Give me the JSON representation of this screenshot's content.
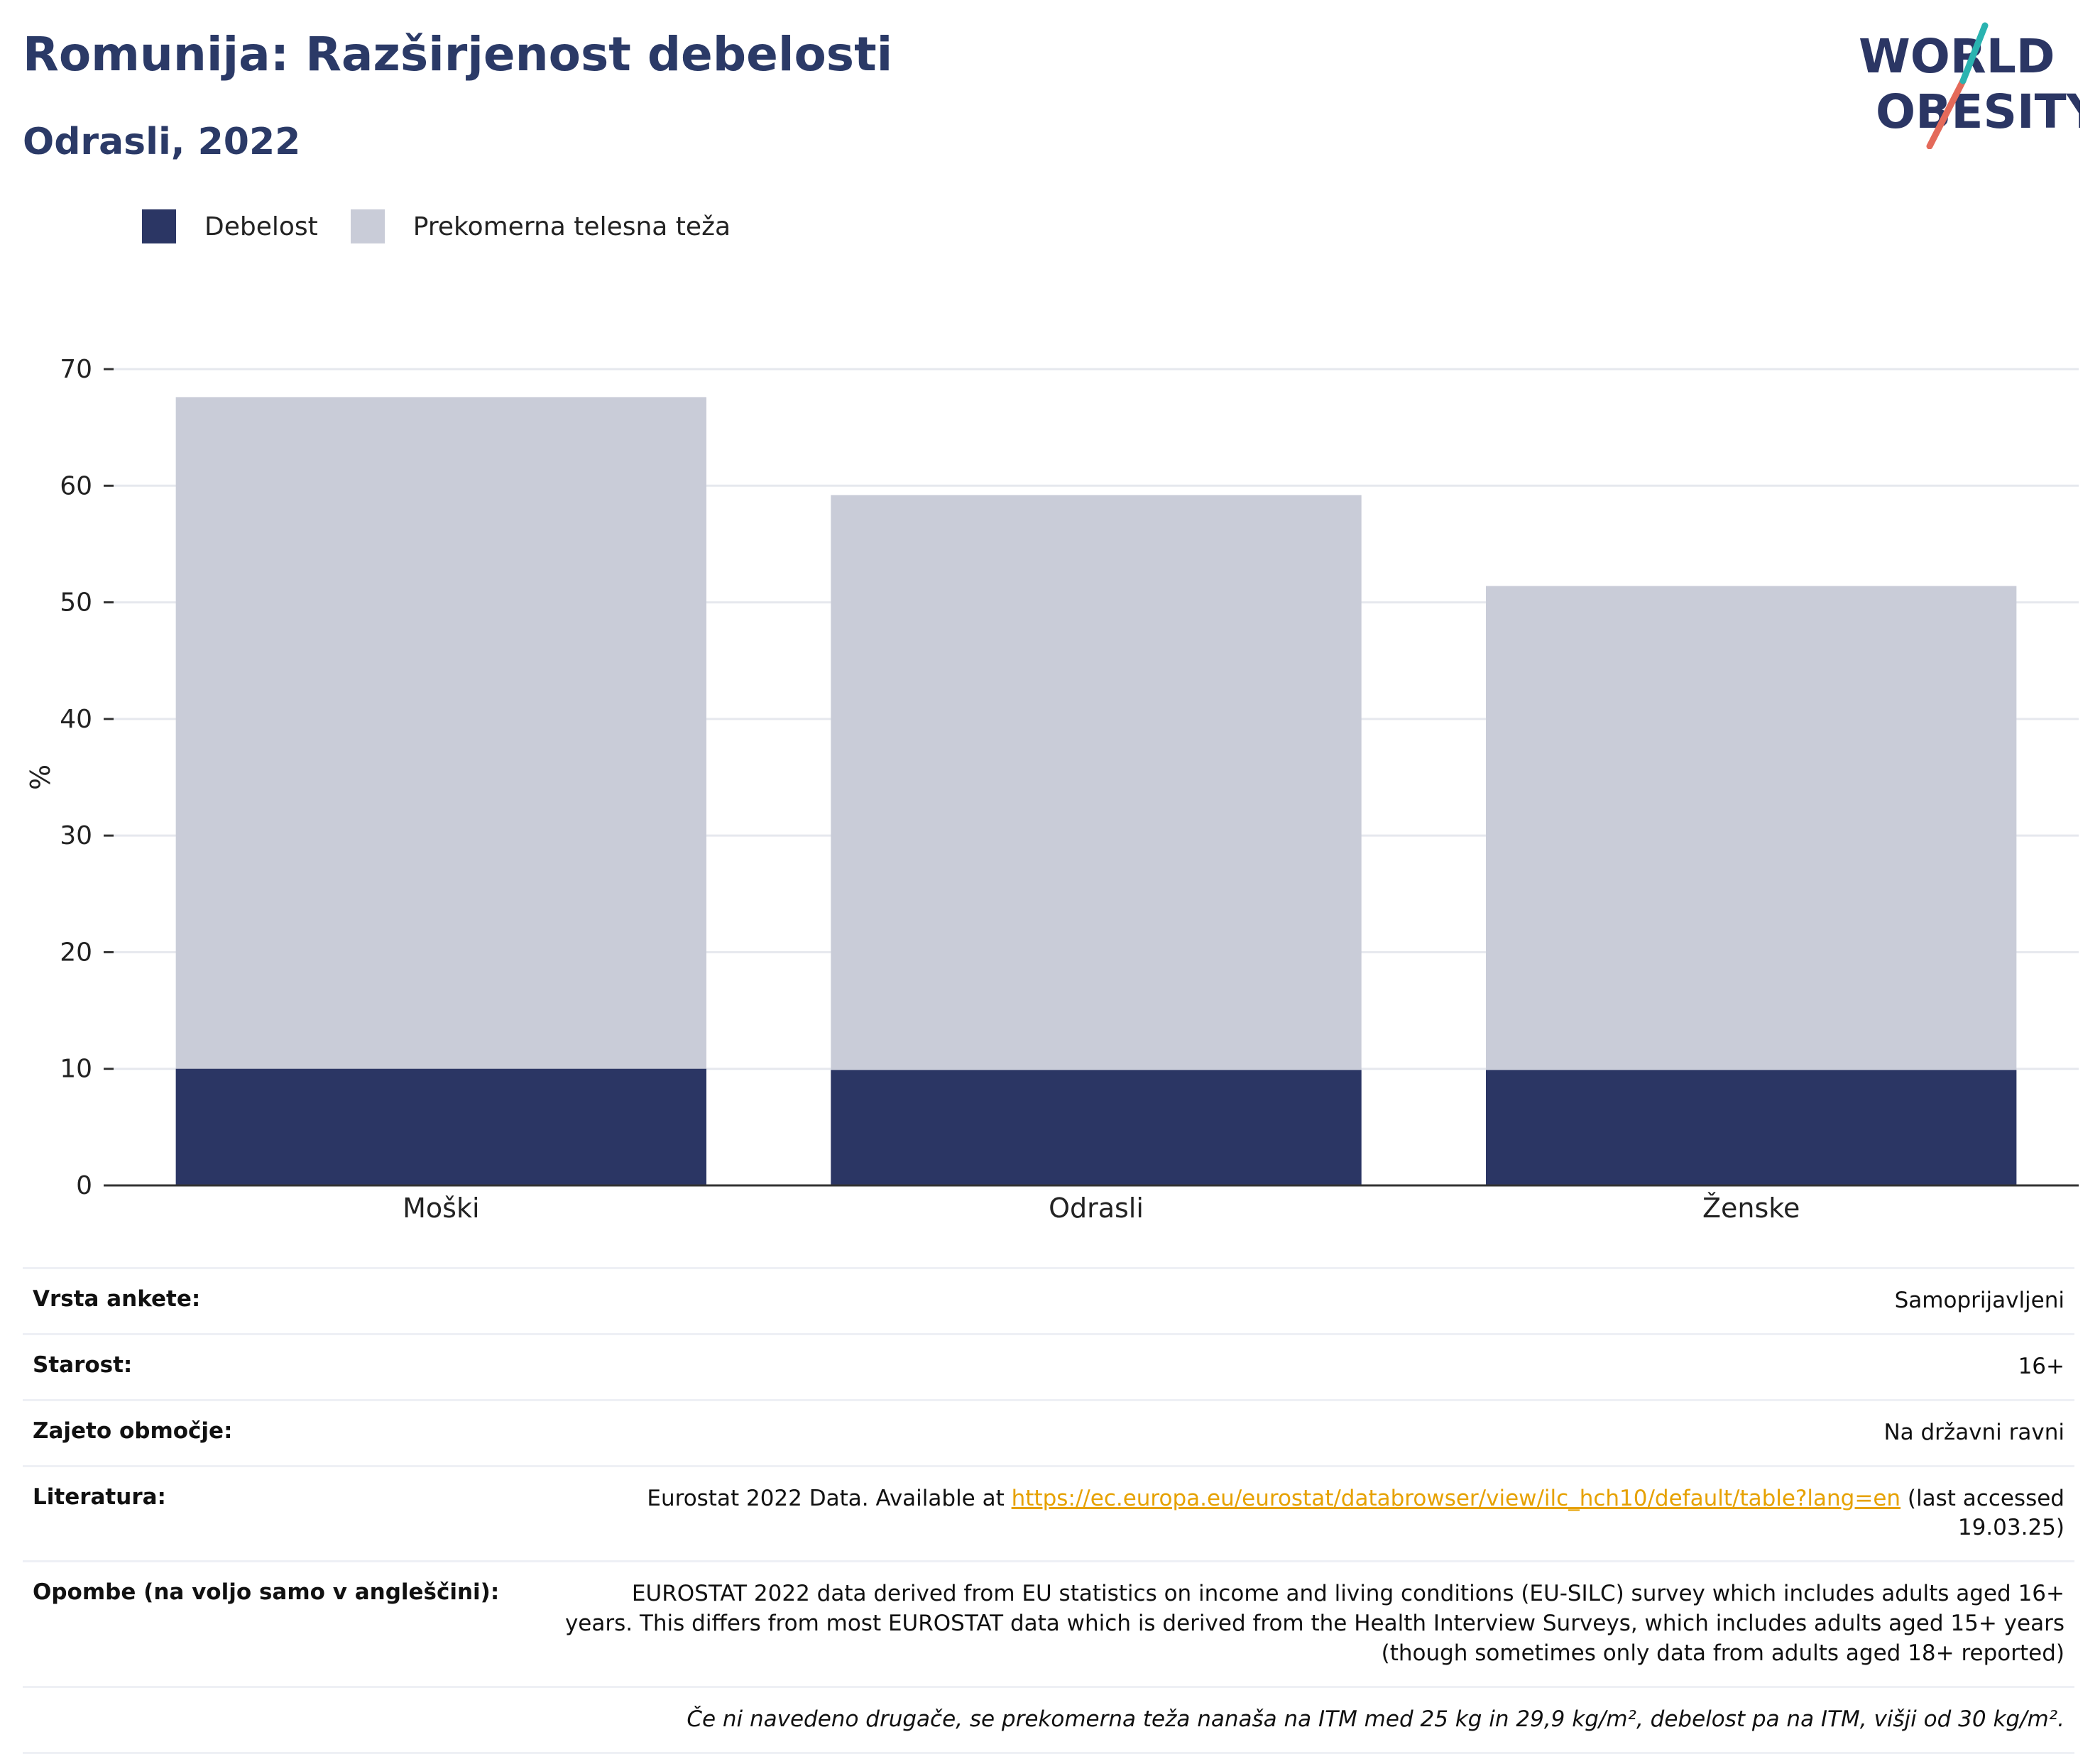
{
  "header": {
    "title": "Romunija: Razširjenost debelosti",
    "subtitle": "Odrasli, 2022"
  },
  "logo": {
    "line1": "WORLD",
    "line2": "OBESITY"
  },
  "legend": [
    {
      "label": "Debelost",
      "color": "#2b3664"
    },
    {
      "label": "Prekomerna telesna teža",
      "color": "#c9ccd8"
    }
  ],
  "chart_data": {
    "type": "bar",
    "stacked": false,
    "overlapping": true,
    "categories": [
      "Moški",
      "Odrasli",
      "Ženske"
    ],
    "series": [
      {
        "name": "Prekomerna telesna teža",
        "values": [
          67.6,
          59.2,
          51.4
        ],
        "color": "#c9ccd8"
      },
      {
        "name": "Debelost",
        "values": [
          10.0,
          9.9,
          9.9
        ],
        "color": "#2b3664"
      }
    ],
    "ylabel": "%",
    "ylim": [
      0,
      70
    ],
    "yticks": [
      0,
      10,
      20,
      30,
      40,
      50,
      60,
      70
    ],
    "grid": true,
    "legend_position": "top-left"
  },
  "meta": {
    "survey_label": "Vrsta ankete:",
    "survey_value": "Samoprijavljeni",
    "age_label": "Starost:",
    "age_value": "16+",
    "coverage_label": "Zajeto območje:",
    "coverage_value": "Na državni ravni",
    "ref_label": "Literatura:",
    "ref_prefix": "Eurostat 2022 Data. Available at ",
    "ref_link": "https://ec.europa.eu/eurostat/databrowser/view/ilc_hch10/default/table?lang=en",
    "ref_suffix": " (last accessed 19.03.25)",
    "notes_label": "Opombe (na voljo samo v angleščini):",
    "notes_value": "EUROSTAT 2022 data derived from EU statistics on income and living conditions (EU-SILC) survey which includes adults aged 16+ years. This differs from most EUROSTAT data which is derived from the Health Interview Surveys, which includes adults aged 15+ years (though sometimes only data from adults aged 18+ reported)",
    "footnote": "Če ni navedeno drugače, se prekomerna teža nanaša na ITM med 25 kg in 29,9 kg/m², debelost pa na ITM, višji od 30 kg/m²."
  }
}
